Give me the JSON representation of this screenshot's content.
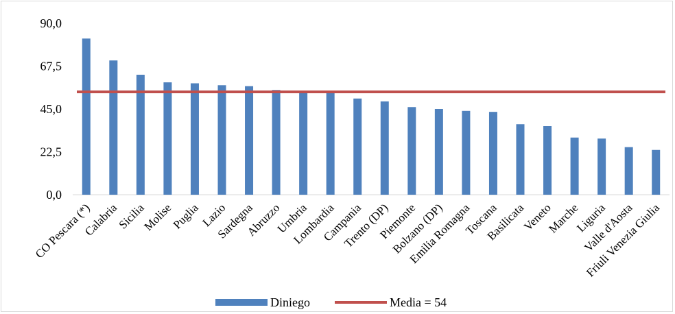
{
  "chart_data": {
    "type": "bar",
    "categories": [
      "CO Pescara (*)",
      "Calabria",
      "Sicilia",
      "Molise",
      "Puglia",
      "Lazio",
      "Sardegna",
      "Abruzzo",
      "Umbria",
      "Lombardia",
      "Campania",
      "Trento (DP)",
      "Piemonte",
      "Bolzano (DP)",
      "Emilia Romagna",
      "Toscana",
      "Basilicata",
      "Veneto",
      "Marche",
      "Liguria",
      "Valle d'Aosta",
      "Friuli Venezia Giulia"
    ],
    "series": [
      {
        "name": "Diniego",
        "values": [
          82,
          70.5,
          63,
          59,
          58.5,
          57.5,
          57,
          55,
          54.5,
          53.5,
          50.5,
          49,
          46,
          45,
          44,
          43.5,
          37,
          36,
          30,
          29.5,
          25,
          23.5
        ],
        "color": "#4f81bd"
      }
    ],
    "reference_line": {
      "name": "Media = 54",
      "value": 54,
      "color": "#c0504d"
    },
    "y_ticks": [
      "0,0",
      "22,5",
      "45,0",
      "67,5",
      "90,0"
    ],
    "ylim": [
      0,
      90
    ],
    "grid": false,
    "legend_position": "bottom",
    "title": "",
    "xlabel": "",
    "ylabel": ""
  }
}
